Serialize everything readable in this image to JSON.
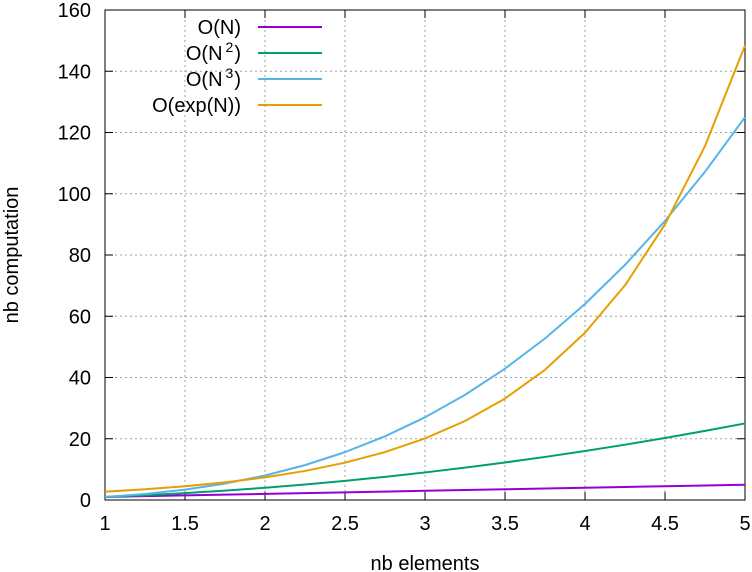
{
  "chart_data": {
    "type": "line",
    "title": "",
    "xlabel": "nb elements",
    "ylabel": "nb computation",
    "xlim": [
      1,
      5
    ],
    "ylim": [
      0,
      160
    ],
    "x_ticks": [
      "1",
      "1.5",
      "2",
      "2.5",
      "3",
      "3.5",
      "4",
      "4.5",
      "5"
    ],
    "y_ticks": [
      "0",
      "20",
      "40",
      "60",
      "80",
      "100",
      "120",
      "140",
      "160"
    ],
    "grid": true,
    "legend_position": "top-left",
    "x": [
      1,
      1.25,
      1.5,
      1.75,
      2,
      2.25,
      2.5,
      2.75,
      3,
      3.25,
      3.5,
      3.75,
      4,
      4.25,
      4.5,
      4.75,
      5
    ],
    "series": [
      {
        "name": "O(N)",
        "color": "#9400d3",
        "legend": {
          "base": "O(N)",
          "exp": "",
          "close": ""
        },
        "values": [
          1,
          1.25,
          1.5,
          1.75,
          2,
          2.25,
          2.5,
          2.75,
          3,
          3.25,
          3.5,
          3.75,
          4,
          4.25,
          4.5,
          4.75,
          5
        ]
      },
      {
        "name": "O(N²)",
        "color": "#009e73",
        "legend": {
          "base": "O(N",
          "exp": "2",
          "close": ")"
        },
        "values": [
          1,
          1.56,
          2.25,
          3.06,
          4,
          5.06,
          6.25,
          7.56,
          9,
          10.56,
          12.25,
          14.06,
          16,
          18.06,
          20.25,
          22.56,
          25
        ]
      },
      {
        "name": "O(N³)",
        "color": "#56b4e9",
        "legend": {
          "base": "O(N",
          "exp": "3",
          "close": ")"
        },
        "values": [
          1,
          1.95,
          3.38,
          5.36,
          8,
          11.39,
          15.63,
          20.8,
          27,
          34.33,
          42.88,
          52.73,
          64,
          76.77,
          91.13,
          107.17,
          125
        ]
      },
      {
        "name": "O(exp(N))",
        "color": "#e69f00",
        "legend": {
          "base": "O(exp(N))",
          "exp": "",
          "close": ""
        },
        "values": [
          2.72,
          3.49,
          4.48,
          5.75,
          7.39,
          9.49,
          12.18,
          15.64,
          20.09,
          25.79,
          33.12,
          42.52,
          54.6,
          70.11,
          90.02,
          115.58,
          148.41
        ]
      }
    ]
  }
}
